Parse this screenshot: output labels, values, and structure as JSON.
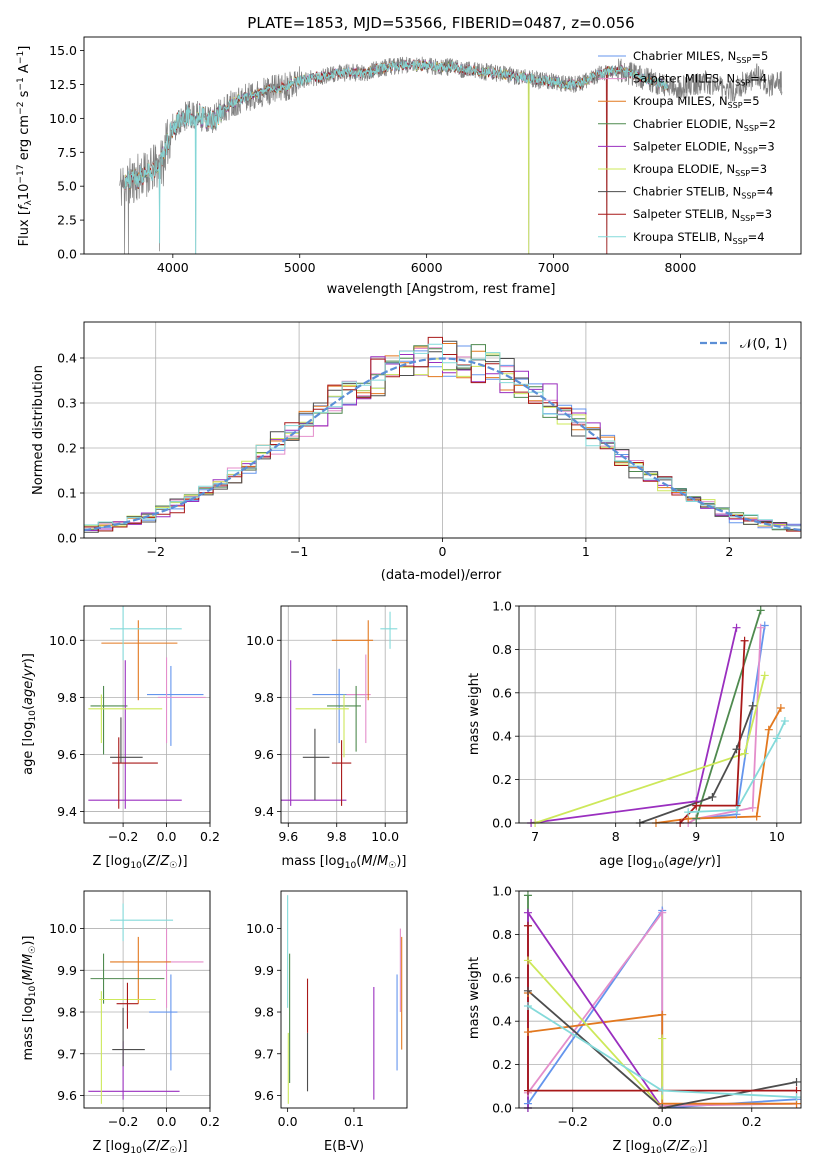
{
  "palette": [
    "#6495ed",
    "#e48ecb",
    "#e2781f",
    "#4f8a4f",
    "#9a2fbf",
    "#cde85a",
    "#4d4d4d",
    "#a81919",
    "#84dada"
  ],
  "series_names": [
    "Chabrier MILES, N_SSP=5",
    "Salpeter MILES, N_SSP=4",
    "Kroupa MILES, N_SSP=5",
    "Chabrier ELODIE, N_SSP=2",
    "Salpeter ELODIE, N_SSP=3",
    "Kroupa ELODIE, N_SSP=3",
    "Chabrier STELIB, N_SSP=4",
    "Salpeter STELIB, N_SSP=3",
    "Kroupa STELIB, N_SSP=4"
  ],
  "legend_labels": [
    {
      "main": "Chabrier MILES, N",
      "sub": "SSP",
      "tail": "=5"
    },
    {
      "main": "Salpeter MILES, N",
      "sub": "SSP",
      "tail": "=4"
    },
    {
      "main": "Kroupa MILES, N",
      "sub": "SSP",
      "tail": "=5"
    },
    {
      "main": "Chabrier ELODIE, N",
      "sub": "SSP",
      "tail": "=2"
    },
    {
      "main": "Salpeter ELODIE, N",
      "sub": "SSP",
      "tail": "=3"
    },
    {
      "main": "Kroupa ELODIE, N",
      "sub": "SSP",
      "tail": "=3"
    },
    {
      "main": "Chabrier STELIB, N",
      "sub": "SSP",
      "tail": "=4"
    },
    {
      "main": "Salpeter STELIB, N",
      "sub": "SSP",
      "tail": "=3"
    },
    {
      "main": "Kroupa STELIB, N",
      "sub": "SSP",
      "tail": "=4"
    }
  ],
  "chart_data": [
    {
      "type": "line",
      "title": "PLATE=1853, MJD=53566, FIBERID=0487, z=0.056",
      "xlabel": "wavelength [Angstrom, rest frame]",
      "ylabel": "Flux [fλ10⁻¹⁷ erg cm⁻² s⁻¹ A⁻¹]",
      "xlim": [
        3300,
        8950
      ],
      "ylim": [
        0,
        16
      ],
      "xticks": [
        4000,
        5000,
        6000,
        7000,
        8000
      ],
      "yticks": [
        0.0,
        2.5,
        5.0,
        7.5,
        10.0,
        12.5,
        15.0
      ],
      "legend": "upper right, inside",
      "spectrum_profile": {
        "x": [
          3580,
          3650,
          3700,
          3750,
          3800,
          3850,
          3900,
          3950,
          4000,
          4100,
          4200,
          4300,
          4400,
          4500,
          4600,
          4700,
          4800,
          4900,
          5000,
          5100,
          5200,
          5300,
          5400,
          5500,
          5600,
          5700,
          5800,
          5900,
          6000,
          6100,
          6200,
          6300,
          6400,
          6500,
          6600,
          6700,
          6800,
          6900,
          7000,
          7100,
          7200,
          7300,
          7400,
          7500,
          7600,
          7700,
          7800,
          7900,
          8000,
          8100,
          8200,
          8300,
          8400,
          8500,
          8600,
          8700,
          8800
        ],
        "y": [
          5.0,
          5.3,
          5.5,
          5.8,
          6.0,
          6.3,
          6.6,
          8.0,
          9.3,
          10.2,
          10.2,
          9.8,
          10.7,
          11.3,
          11.6,
          11.9,
          12.2,
          12.4,
          12.8,
          13.0,
          13.1,
          13.3,
          13.4,
          13.3,
          13.6,
          13.8,
          13.9,
          13.9,
          13.9,
          13.8,
          13.8,
          13.6,
          13.5,
          13.4,
          13.3,
          13.1,
          13.0,
          12.8,
          12.7,
          12.5,
          12.5,
          13.0,
          13.4,
          13.6,
          13.3,
          13.0,
          12.7,
          12.3,
          12.2,
          12.5,
          12.7,
          12.3,
          12.0,
          12.6,
          13.2,
          12.4,
          12.6
        ]
      },
      "spectrum_range": [
        3580,
        8800
      ],
      "model_range": [
        3620,
        7900
      ],
      "dips": [
        {
          "x": 3620,
          "y": 0
        },
        {
          "x": 3650,
          "y": 0
        },
        {
          "x": 3895,
          "y": 0.2
        },
        {
          "x": 3925,
          "y": 5.0
        },
        {
          "x": 4180,
          "y": 0
        },
        {
          "x": 6805,
          "y": 0
        },
        {
          "x": 7420,
          "y": 0
        }
      ]
    },
    {
      "type": "histogram",
      "xlabel": "(data-model)/error",
      "ylabel": "Normed distribution",
      "xlim": [
        -2.5,
        2.5
      ],
      "ylim": [
        0,
        0.48
      ],
      "xticks": [
        -2,
        -1,
        0,
        1,
        2
      ],
      "yticks": [
        0.0,
        0.1,
        0.2,
        0.3,
        0.4
      ],
      "grid": true,
      "bin_width": 0.1,
      "legend": {
        "label": "𝒩(0, 1)",
        "position": "upper right"
      },
      "normal_curve": {
        "mean": 0,
        "sigma": 1
      }
    },
    {
      "type": "scatter",
      "xlabel": "Z [log10(Z/Z☉)]",
      "ylabel": "age  [log10(age/yr)]",
      "xlim": [
        -0.38,
        0.2
      ],
      "ylim": [
        9.36,
        10.12
      ],
      "xticks": [
        -0.2,
        0.0,
        0.2
      ],
      "yticks": [
        9.4,
        9.6,
        9.8,
        10.0
      ],
      "grid": true,
      "points": [
        {
          "x": 0.02,
          "y": 9.81,
          "xerr": [
            0.11,
            0.15
          ],
          "yerr": [
            0.18,
            0.1
          ]
        },
        {
          "x": 0.0,
          "y": 9.8,
          "xerr": [
            0.04,
            0.18
          ],
          "yerr": [
            0.16,
            0.14
          ]
        },
        {
          "x": -0.13,
          "y": 9.99,
          "xerr": [
            0.17,
            0.18
          ],
          "yerr": [
            0.2,
            0.08
          ]
        },
        {
          "x": -0.29,
          "y": 9.77,
          "xerr": [
            0.06,
            0.11
          ],
          "yerr": [
            0.17,
            0.07
          ]
        },
        {
          "x": -0.19,
          "y": 9.44,
          "xerr": [
            0.17,
            0.26
          ],
          "yerr": [
            0.03,
            0.49
          ]
        },
        {
          "x": -0.3,
          "y": 9.76,
          "xerr": [
            0.06,
            0.28
          ],
          "yerr": [
            0.12,
            0.05
          ]
        },
        {
          "x": -0.21,
          "y": 9.59,
          "xerr": [
            0.05,
            0.1
          ],
          "yerr": [
            0.02,
            0.14
          ]
        },
        {
          "x": -0.22,
          "y": 9.57,
          "xerr": [
            0.03,
            0.18
          ],
          "yerr": [
            0.16,
            0.09
          ]
        },
        {
          "x": -0.2,
          "y": 10.04,
          "xerr": [
            0.06,
            0.27
          ],
          "yerr": [
            0.11,
            0.08
          ]
        }
      ]
    },
    {
      "type": "scatter",
      "xlabel": "mass [log10(M/M☉)]",
      "ylabel": "",
      "xlim": [
        9.57,
        10.09
      ],
      "ylim": [
        9.36,
        10.12
      ],
      "xticks": [
        9.6,
        9.8,
        10.0
      ],
      "yticks": [
        9.4,
        9.6,
        9.8,
        10.0
      ],
      "grid": true,
      "points": [
        {
          "x": 9.81,
          "y": 9.81,
          "xerr": [
            0.11,
            0.11
          ],
          "yerr": [
            0.17,
            0.09
          ]
        },
        {
          "x": 9.92,
          "y": 9.81,
          "xerr": [
            0.08,
            0.02
          ],
          "yerr": [
            0.17,
            0.14
          ]
        },
        {
          "x": 9.93,
          "y": 10.0,
          "xerr": [
            0.15,
            0.02
          ],
          "yerr": [
            0.21,
            0.07
          ]
        },
        {
          "x": 9.88,
          "y": 9.77,
          "xerr": [
            0.12,
            0.02
          ],
          "yerr": [
            0.16,
            0.07
          ]
        },
        {
          "x": 9.61,
          "y": 9.44,
          "xerr": [
            0.05,
            0.23
          ],
          "yerr": [
            0.02,
            0.49
          ]
        },
        {
          "x": 9.83,
          "y": 9.76,
          "xerr": [
            0.2,
            0.02
          ],
          "yerr": [
            0.17,
            0.05
          ]
        },
        {
          "x": 9.71,
          "y": 9.59,
          "xerr": [
            0.05,
            0.06
          ],
          "yerr": [
            0.15,
            0.1
          ]
        },
        {
          "x": 9.82,
          "y": 9.57,
          "xerr": [
            0.04,
            0.04
          ],
          "yerr": [
            0.15,
            0.08
          ]
        },
        {
          "x": 10.02,
          "y": 10.04,
          "xerr": [
            0.04,
            0.03
          ],
          "yerr": [
            0.07,
            0.06
          ]
        }
      ]
    },
    {
      "type": "line",
      "xlabel": "age  [log10(age/yr)]",
      "ylabel": "mass weight",
      "xlim": [
        6.8,
        10.3
      ],
      "ylim": [
        0,
        1
      ],
      "xticks": [
        7,
        8,
        9,
        10
      ],
      "yticks": [
        0.0,
        0.2,
        0.4,
        0.6,
        0.8,
        1.0
      ],
      "grid": true,
      "series": [
        {
          "x": [
            9.0,
            9.5,
            9.85
          ],
          "y": [
            0.02,
            0.04,
            0.91
          ]
        },
        {
          "x": [
            8.9,
            9.0,
            9.7,
            9.8
          ],
          "y": [
            0.0,
            0.02,
            0.07,
            0.9
          ]
        },
        {
          "x": [
            8.5,
            8.9,
            9.75,
            9.9,
            10.05
          ],
          "y": [
            0.0,
            0.02,
            0.03,
            0.43,
            0.53
          ]
        },
        {
          "x": [
            9.0,
            9.8
          ],
          "y": [
            0.02,
            0.98
          ]
        },
        {
          "x": [
            6.95,
            9.0,
            9.5
          ],
          "y": [
            0.0,
            0.1,
            0.9
          ]
        },
        {
          "x": [
            7.0,
            9.6,
            9.85
          ],
          "y": [
            0.0,
            0.32,
            0.68
          ]
        },
        {
          "x": [
            8.3,
            9.2,
            9.5,
            9.7
          ],
          "y": [
            0.0,
            0.12,
            0.34,
            0.54
          ]
        },
        {
          "x": [
            8.8,
            9.0,
            9.5,
            9.6
          ],
          "y": [
            0.0,
            0.08,
            0.08,
            0.84
          ]
        },
        {
          "x": [
            8.9,
            9.5,
            10.0,
            10.1
          ],
          "y": [
            0.05,
            0.06,
            0.39,
            0.47
          ]
        }
      ]
    },
    {
      "type": "scatter",
      "xlabel": "Z [log10(Z/Z☉)]",
      "ylabel": "mass [log10(M/M☉)]",
      "xlim": [
        -0.38,
        0.2
      ],
      "ylim": [
        9.57,
        10.09
      ],
      "xticks": [
        -0.2,
        0.0,
        0.2
      ],
      "yticks": [
        9.6,
        9.7,
        9.8,
        9.9,
        10.0
      ],
      "grid": true,
      "points": [
        {
          "x": 0.02,
          "y": 9.8,
          "xerr": [
            0.1,
            0.03
          ],
          "yerr": [
            0.14,
            0.09
          ]
        },
        {
          "x": 0.0,
          "y": 9.92,
          "xerr": [
            0.01,
            0.17
          ],
          "yerr": [
            0.11,
            0.08
          ]
        },
        {
          "x": -0.13,
          "y": 9.92,
          "xerr": [
            0.13,
            0.15
          ],
          "yerr": [
            0.1,
            0.06
          ]
        },
        {
          "x": -0.29,
          "y": 9.88,
          "xerr": [
            0.06,
            0.28
          ],
          "yerr": [
            0.06,
            0.06
          ]
        },
        {
          "x": -0.2,
          "y": 9.61,
          "xerr": [
            0.16,
            0.26
          ],
          "yerr": [
            0.02,
            0.12
          ]
        },
        {
          "x": -0.3,
          "y": 9.83,
          "xerr": [
            0.01,
            0.25
          ],
          "yerr": [
            0.25,
            0.02
          ]
        },
        {
          "x": -0.2,
          "y": 9.71,
          "xerr": [
            0.05,
            0.1
          ],
          "yerr": [
            0.04,
            0.1
          ]
        },
        {
          "x": -0.18,
          "y": 9.82,
          "xerr": [
            0.05,
            0.05
          ],
          "yerr": [
            0.06,
            0.05
          ]
        },
        {
          "x": -0.2,
          "y": 10.02,
          "xerr": [
            0.06,
            0.23
          ],
          "yerr": [
            0.05,
            0.04
          ]
        }
      ]
    },
    {
      "type": "errorbar",
      "xlabel": "E(B-V)",
      "ylabel": "",
      "xlim": [
        -0.01,
        0.18
      ],
      "ylim": [
        9.57,
        10.09
      ],
      "xticks": [
        0.0,
        0.1
      ],
      "yticks": [
        9.6,
        9.7,
        9.8,
        9.9,
        10.0
      ],
      "points": [
        {
          "x": 0.165,
          "y": 9.8,
          "yerr": [
            0.14,
            0.09
          ]
        },
        {
          "x": 0.17,
          "y": 9.92,
          "yerr": [
            0.12,
            0.08
          ]
        },
        {
          "x": 0.172,
          "y": 9.85,
          "yerr": [
            0.14,
            0.13
          ]
        },
        {
          "x": 0.003,
          "y": 9.85,
          "yerr": [
            0.22,
            0.09
          ]
        },
        {
          "x": 0.13,
          "y": 9.71,
          "yerr": [
            0.12,
            0.15
          ]
        },
        {
          "x": 0.001,
          "y": 9.7,
          "yerr": [
            0.12,
            0.05
          ]
        },
        {
          "x": 0.03,
          "y": 9.7,
          "yerr": [
            0.09,
            0.05
          ]
        },
        {
          "x": 0.03,
          "y": 9.8,
          "yerr": [
            0.05,
            0.08
          ]
        },
        {
          "x": 0.0,
          "y": 9.95,
          "yerr": [
            0.14,
            0.13
          ]
        }
      ]
    },
    {
      "type": "line",
      "xlabel": "Z [log10(Z/Z☉)]",
      "ylabel": "mass weight",
      "xlim": [
        -0.32,
        0.31
      ],
      "ylim": [
        0,
        1
      ],
      "xticks": [
        -0.2,
        0.0,
        0.2
      ],
      "yticks": [
        0.0,
        0.2,
        0.4,
        0.6,
        0.8,
        1.0
      ],
      "grid": true,
      "series": [
        {
          "x": [
            -0.3,
            0.0,
            0.0,
            0.3
          ],
          "y": [
            0.02,
            0.91,
            0.0,
            0.04
          ]
        },
        {
          "x": [
            -0.3,
            0.0,
            0.0,
            0.3
          ],
          "y": [
            0.07,
            0.9,
            0.01,
            0.02
          ]
        },
        {
          "x": [
            -0.3,
            -0.3,
            0.0,
            0.0,
            0.3
          ],
          "y": [
            0.53,
            0.35,
            0.43,
            0.02,
            0.02
          ]
        },
        {
          "x": [
            -0.3,
            -0.3
          ],
          "y": [
            0.0,
            0.98
          ]
        },
        {
          "x": [
            -0.3,
            -0.3,
            0.0
          ],
          "y": [
            0.0,
            0.9,
            0.0
          ]
        },
        {
          "x": [
            -0.3,
            0.0,
            0.0
          ],
          "y": [
            0.68,
            0.0,
            0.32
          ]
        },
        {
          "x": [
            -0.3,
            0.0,
            0.3
          ],
          "y": [
            0.54,
            0.0,
            0.12
          ]
        },
        {
          "x": [
            -0.3,
            -0.3,
            0.3
          ],
          "y": [
            0.84,
            0.08,
            0.08
          ]
        },
        {
          "x": [
            -0.3,
            0.0,
            0.3
          ],
          "y": [
            0.47,
            0.08,
            0.05
          ]
        }
      ]
    }
  ]
}
